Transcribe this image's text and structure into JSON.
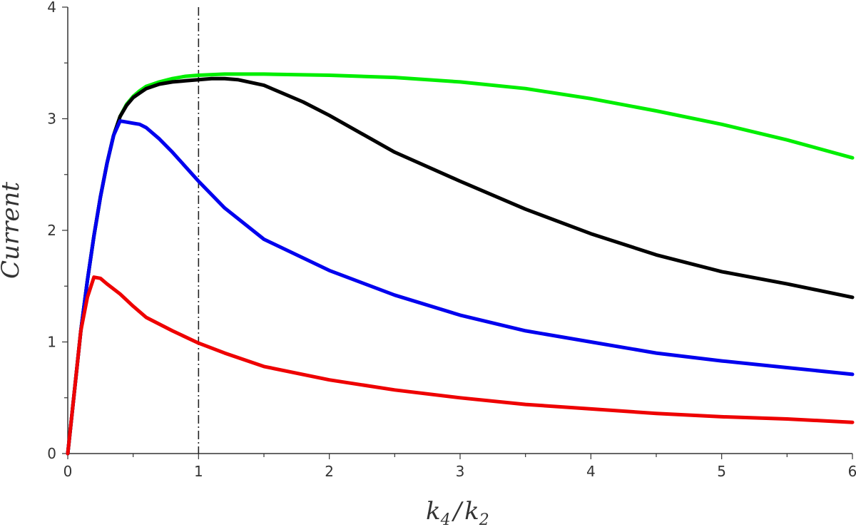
{
  "chart_data": {
    "type": "line",
    "title": "",
    "xlabel": {
      "k1": "k",
      "sub1": "4",
      "slash": "/",
      "k2": "k",
      "sub2": "2"
    },
    "ylabel": "Current",
    "xlim": [
      0,
      6
    ],
    "ylim": [
      0,
      4
    ],
    "x_ticks": [
      0,
      1,
      2,
      3,
      4,
      5,
      6
    ],
    "y_ticks": [
      0,
      1,
      2,
      3,
      4
    ],
    "x_minor_step": 0.5,
    "y_minor_step": 0.5,
    "reference_line": {
      "x": 1,
      "style": "dash-dot",
      "color": "#222222"
    },
    "series": [
      {
        "color": "#00ee00",
        "x": [
          0,
          0.05,
          0.1,
          0.15,
          0.2,
          0.25,
          0.3,
          0.35,
          0.4,
          0.45,
          0.5,
          0.55,
          0.6,
          0.7,
          0.8,
          0.9,
          1.0,
          1.2,
          1.5,
          2.0,
          2.5,
          3.0,
          3.5,
          4.0,
          4.5,
          5.0,
          5.5,
          6.0
        ],
        "values": [
          0,
          0.55,
          1.1,
          1.55,
          1.95,
          2.3,
          2.6,
          2.85,
          3.02,
          3.13,
          3.2,
          3.25,
          3.29,
          3.33,
          3.36,
          3.38,
          3.39,
          3.4,
          3.4,
          3.39,
          3.37,
          3.33,
          3.27,
          3.18,
          3.07,
          2.95,
          2.81,
          2.65
        ]
      },
      {
        "color": "#000000",
        "x": [
          0,
          0.05,
          0.1,
          0.15,
          0.2,
          0.25,
          0.3,
          0.35,
          0.4,
          0.45,
          0.5,
          0.55,
          0.6,
          0.7,
          0.8,
          0.9,
          1.0,
          1.1,
          1.2,
          1.3,
          1.5,
          1.8,
          2.0,
          2.5,
          3.0,
          3.5,
          4.0,
          4.5,
          5.0,
          5.5,
          6.0
        ],
        "values": [
          0,
          0.55,
          1.1,
          1.55,
          1.95,
          2.3,
          2.6,
          2.85,
          3.02,
          3.12,
          3.19,
          3.23,
          3.27,
          3.31,
          3.33,
          3.34,
          3.35,
          3.36,
          3.36,
          3.35,
          3.3,
          3.15,
          3.03,
          2.7,
          2.44,
          2.19,
          1.97,
          1.78,
          1.63,
          1.52,
          1.4
        ]
      },
      {
        "color": "#0000ee",
        "x": [
          0,
          0.05,
          0.1,
          0.15,
          0.2,
          0.25,
          0.3,
          0.35,
          0.4,
          0.45,
          0.5,
          0.55,
          0.6,
          0.7,
          0.8,
          1.0,
          1.2,
          1.5,
          2.0,
          2.5,
          3.0,
          3.5,
          4.0,
          4.5,
          5.0,
          5.5,
          6.0
        ],
        "values": [
          0,
          0.55,
          1.1,
          1.55,
          1.95,
          2.3,
          2.6,
          2.85,
          2.98,
          2.97,
          2.96,
          2.95,
          2.92,
          2.82,
          2.7,
          2.44,
          2.2,
          1.92,
          1.64,
          1.42,
          1.24,
          1.1,
          1.0,
          0.9,
          0.83,
          0.77,
          0.71
        ]
      },
      {
        "color": "#ee0000",
        "x": [
          0,
          0.05,
          0.1,
          0.15,
          0.2,
          0.25,
          0.3,
          0.4,
          0.5,
          0.6,
          0.8,
          1.0,
          1.2,
          1.5,
          2.0,
          2.5,
          3.0,
          3.5,
          4.0,
          4.5,
          5.0,
          5.5,
          6.0
        ],
        "values": [
          0,
          0.55,
          1.1,
          1.4,
          1.58,
          1.57,
          1.52,
          1.43,
          1.32,
          1.22,
          1.1,
          0.99,
          0.9,
          0.78,
          0.66,
          0.57,
          0.5,
          0.44,
          0.4,
          0.36,
          0.33,
          0.31,
          0.28
        ]
      }
    ]
  }
}
